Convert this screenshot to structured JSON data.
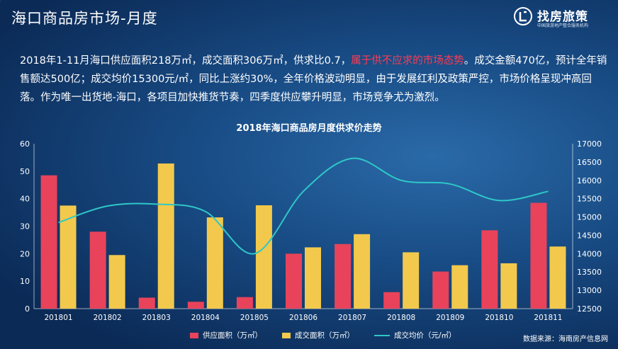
{
  "header": {
    "title": "海口商品房市场-月度",
    "logo_text": "找房旅策",
    "logo_sub": "中国旅游地产整合服务机构"
  },
  "summary": {
    "part1": "2018年1-11月海口供应面积218万㎡，成交面积306万㎡，供求比0.7，",
    "highlight": "属于供不应求的市场态势",
    "part2": "。成交金额470亿，预计全年销售额达500亿；成交均价15300元/㎡，同比上涨约30%，全年价格波动明显，由于发展红利及政策严控，市场价格呈现冲高回落。作为唯一出货地-海口，各项目加快推货节奏，四季度供应攀升明显，市场竞争尤为激烈。"
  },
  "source": "数据来源：海南房产信息网",
  "colors": {
    "supply": "#e8435a",
    "deal": "#f2c94c",
    "price": "#2fc7c7",
    "highlight": "#ff3b53"
  },
  "chart_data": {
    "type": "bar",
    "title": "2018年海口商品房月度供求价走势",
    "categories": [
      "201801",
      "201802",
      "201803",
      "201804",
      "201805",
      "201806",
      "201807",
      "201808",
      "201809",
      "201810",
      "201811"
    ],
    "series": [
      {
        "name": "供应面积（万㎡）",
        "type": "bar",
        "axis": "left",
        "values": [
          48.5,
          28,
          4,
          2.5,
          4.2,
          20,
          23.5,
          6,
          13.5,
          28.5,
          38.5
        ]
      },
      {
        "name": "成交面积（万㎡）",
        "type": "bar",
        "axis": "left",
        "values": [
          37.5,
          19.5,
          52.8,
          33.2,
          37.6,
          22.3,
          27.1,
          20.5,
          15.8,
          16.5,
          22.6
        ]
      },
      {
        "name": "成交均价（元/㎡）",
        "type": "line",
        "axis": "right",
        "values": [
          14850,
          15300,
          15350,
          15150,
          14000,
          15700,
          16600,
          16000,
          15900,
          15450,
          15700
        ]
      }
    ],
    "ylim_left": [
      0,
      60
    ],
    "yticks_left": [
      0,
      10,
      20,
      30,
      40,
      50,
      60
    ],
    "ylim_right": [
      12500,
      17000
    ],
    "yticks_right": [
      12500,
      13000,
      13500,
      14000,
      14500,
      15000,
      15500,
      16000,
      16500,
      17000
    ],
    "grid": false,
    "legend": "bottom-center"
  }
}
